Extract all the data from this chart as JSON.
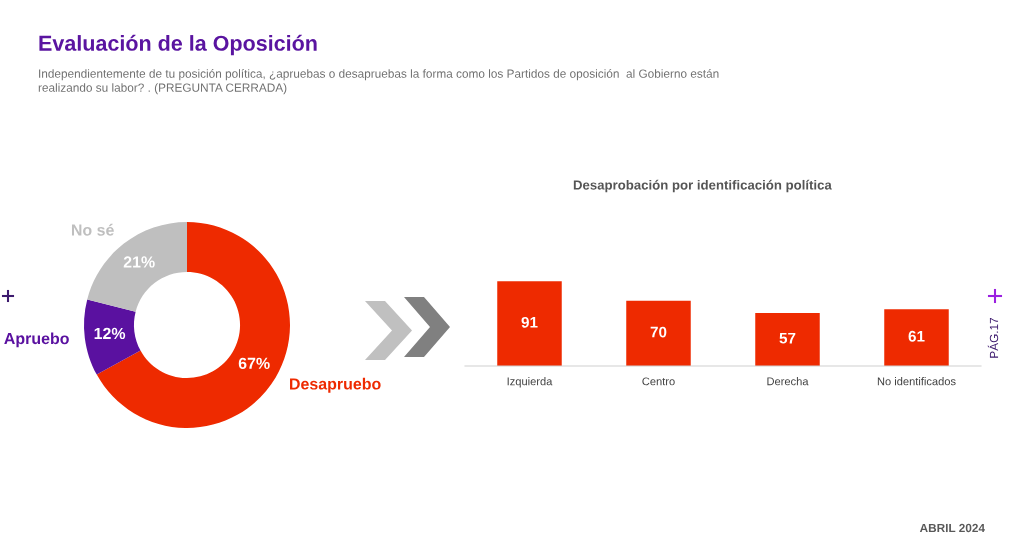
{
  "chart_data": [
    {
      "type": "donut",
      "title": "Evaluación de la Oposición",
      "subtitle": "Independientemente de tu posición política, ¿apruebas o desapruebas la forma como los Partidos de oposición  al Gobierno están\nrealizando su labor? . (PREGUNTA CERRADA)",
      "categories": [
        "Desapruebo",
        "Apruebo",
        "No sé"
      ],
      "values": [
        67,
        12,
        21
      ],
      "colors": [
        "#ee2a00",
        "#5a11a0",
        "#bfbfbf"
      ],
      "value_labels": [
        "67%",
        "12%",
        "21%"
      ],
      "annotations": [
        "PÁG.17",
        "ABRIL 2024"
      ]
    },
    {
      "type": "bar",
      "title": "Desaprobación por identificación política",
      "categories": [
        "Izquierda",
        "Centro",
        "Derecha",
        "No identificados"
      ],
      "values": [
        91,
        70,
        57,
        61
      ],
      "color": "#ee2a00",
      "data_labels": true,
      "tick_labels": "x"
    }
  ]
}
